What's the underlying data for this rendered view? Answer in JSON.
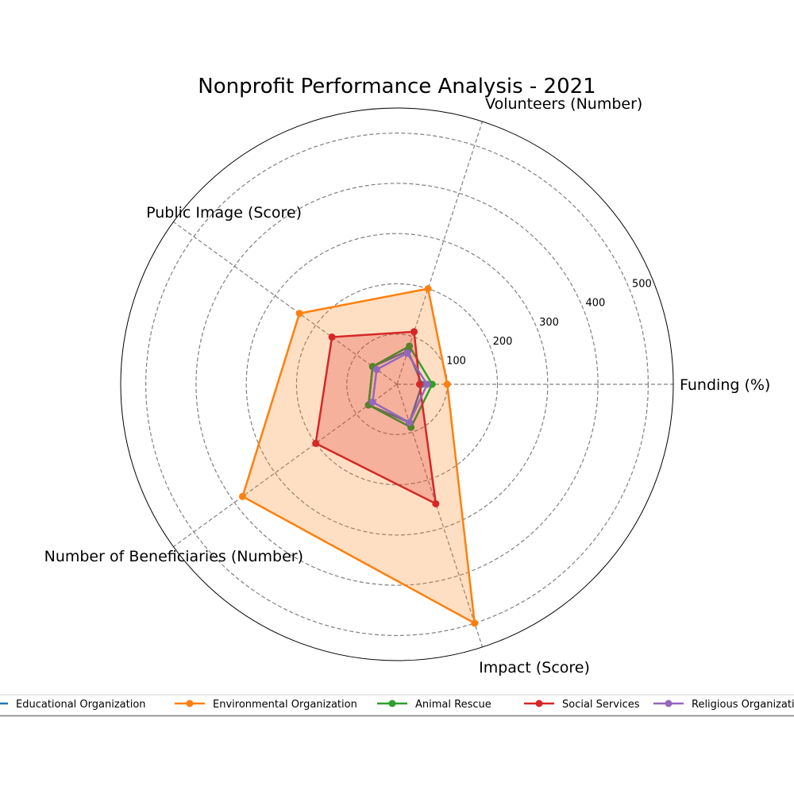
{
  "chart_data": {
    "type": "radar",
    "title": "Nonprofit Performance Analysis - 2021",
    "axes": [
      "Funding (%)",
      "Volunteers (Number)",
      "Public Image (Score)",
      "Number of Beneficiaries (Number)",
      "Impact (Score)"
    ],
    "rlim": [
      0,
      550
    ],
    "rticks": [
      100,
      200,
      300,
      400,
      500
    ],
    "rtick_labels": [
      "100",
      "200",
      "300",
      "400",
      "500"
    ],
    "grid": true,
    "legend_position": "bottom",
    "series": [
      {
        "name": "Educational Organization",
        "color": "#1f77b4",
        "values": [
          50,
          70,
          60,
          70,
          80
        ],
        "filled": false
      },
      {
        "name": "Environmental Organization",
        "color": "#ff7f0e",
        "values": [
          100,
          200,
          240,
          380,
          500
        ],
        "filled": true
      },
      {
        "name": "Animal Rescue",
        "color": "#2ca02c",
        "values": [
          70,
          80,
          60,
          70,
          90
        ],
        "filled": false
      },
      {
        "name": "Social Services",
        "color": "#d62728",
        "values": [
          45,
          110,
          160,
          200,
          250
        ],
        "filled": true
      },
      {
        "name": "Religious Organization",
        "color": "#9467bd",
        "values": [
          60,
          65,
          50,
          60,
          80
        ],
        "filled": false
      }
    ]
  }
}
